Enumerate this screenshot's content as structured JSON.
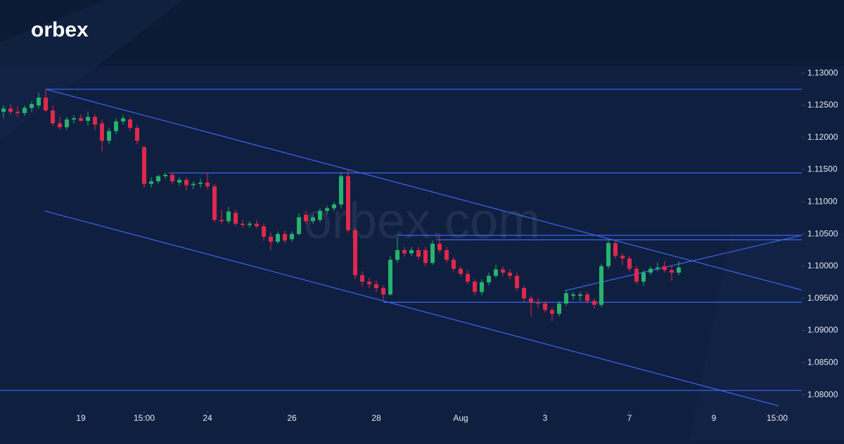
{
  "logo": "orbex",
  "watermark": "orbex.com",
  "chart_data": {
    "type": "candlestick",
    "colors": {
      "up": "#26b36b",
      "down": "#e0294a",
      "lines": "#3c66f0"
    },
    "xlim": [
      -0.5,
      113.5
    ],
    "xticks": [
      {
        "value": 11,
        "label": "19"
      },
      {
        "value": 20,
        "label": "15:00"
      },
      {
        "value": 29,
        "label": "24"
      },
      {
        "value": 41,
        "label": "26"
      },
      {
        "value": 53,
        "label": "28"
      },
      {
        "value": 65,
        "label": "Aug"
      },
      {
        "value": 77,
        "label": "3"
      },
      {
        "value": 89,
        "label": "7"
      },
      {
        "value": 101,
        "label": "9"
      },
      {
        "value": 110,
        "label": "15:00"
      }
    ],
    "ylim": [
      1.0775,
      1.131
    ],
    "yticks": [
      {
        "value": 1.08,
        "label": "1.08000"
      },
      {
        "value": 1.085,
        "label": "1.08500"
      },
      {
        "value": 1.09,
        "label": "1.09000"
      },
      {
        "value": 1.095,
        "label": "1.09500"
      },
      {
        "value": 1.1,
        "label": "1.10000"
      },
      {
        "value": 1.105,
        "label": "1.10500"
      },
      {
        "value": 1.11,
        "label": "1.11000"
      },
      {
        "value": 1.115,
        "label": "1.11500"
      },
      {
        "value": 1.12,
        "label": "1.12000"
      },
      {
        "value": 1.125,
        "label": "1.12500"
      },
      {
        "value": 1.13,
        "label": "1.13000"
      }
    ],
    "open": [
      1.124,
      1.1245,
      1.124,
      1.1238,
      1.1246,
      1.125,
      1.1262,
      1.1242,
      1.1222,
      1.1216,
      1.1228,
      1.123,
      1.1226,
      1.1232,
      1.1222,
      1.1195,
      1.121,
      1.1225,
      1.1228,
      1.1215,
      1.1185,
      1.1128,
      1.1132,
      1.114,
      1.1142,
      1.113,
      1.1134,
      1.1126,
      1.1128,
      1.113,
      1.1124,
      1.1072,
      1.107,
      1.1083,
      1.1066,
      1.1064,
      1.1066,
      1.1062,
      1.1046,
      1.1038,
      1.105,
      1.1042,
      1.105,
      1.108,
      1.107,
      1.1072,
      1.1086,
      1.109,
      1.1096,
      1.114,
      1.1056,
      1.0986,
      1.0976,
      1.0972,
      1.0966,
      1.0956,
      1.101,
      1.1025,
      1.102,
      1.1025,
      1.1025,
      1.1005,
      1.1035,
      1.1025,
      1.101,
      1.0996,
      1.0988,
      1.0976,
      1.096,
      1.0975,
      1.0985,
      1.0995,
      1.099,
      1.0985,
      1.0966,
      1.095,
      1.0944,
      1.0942,
      1.0932,
      1.0926,
      1.0942,
      1.0954,
      1.0954,
      1.0956,
      1.0946,
      1.094,
      1.1,
      1.1036,
      1.1016,
      1.1012,
      1.0996,
      1.0976,
      1.099,
      1.0996,
      1.1,
      1.0994,
      1.099
    ],
    "high": [
      1.125,
      1.1252,
      1.1248,
      1.125,
      1.1256,
      1.127,
      1.1275,
      1.125,
      1.1232,
      1.1232,
      1.1235,
      1.1236,
      1.124,
      1.1236,
      1.1228,
      1.1215,
      1.123,
      1.1235,
      1.1232,
      1.122,
      1.1188,
      1.1138,
      1.1142,
      1.1146,
      1.1146,
      1.1138,
      1.1138,
      1.1132,
      1.1136,
      1.1146,
      1.1128,
      1.1088,
      1.1092,
      1.1088,
      1.1072,
      1.107,
      1.1072,
      1.1066,
      1.1052,
      1.1054,
      1.1055,
      1.1054,
      1.1082,
      1.1086,
      1.108,
      1.109,
      1.1094,
      1.11,
      1.1146,
      1.115,
      1.106,
      1.0992,
      1.0982,
      1.0978,
      1.097,
      1.1015,
      1.1045,
      1.103,
      1.103,
      1.103,
      1.103,
      1.104,
      1.1046,
      1.103,
      1.1014,
      1.1,
      1.0994,
      1.098,
      1.098,
      1.099,
      1.1002,
      1.1,
      1.0995,
      1.099,
      1.097,
      1.0954,
      1.095,
      1.0946,
      1.0936,
      1.0946,
      1.0962,
      1.096,
      1.096,
      1.096,
      1.095,
      1.1004,
      1.104,
      1.104,
      1.102,
      1.1016,
      1.1,
      1.0994,
      1.1,
      1.1006,
      1.1008,
      1.1,
      1.1008
    ],
    "low": [
      1.123,
      1.1235,
      1.1232,
      1.1234,
      1.124,
      1.1245,
      1.124,
      1.1218,
      1.1212,
      1.1212,
      1.1222,
      1.1224,
      1.1218,
      1.1212,
      1.1178,
      1.119,
      1.1205,
      1.122,
      1.121,
      1.119,
      1.1122,
      1.1122,
      1.1128,
      1.1136,
      1.1128,
      1.1125,
      1.1118,
      1.112,
      1.1122,
      1.112,
      1.1068,
      1.1066,
      1.1066,
      1.1062,
      1.106,
      1.106,
      1.1058,
      1.104,
      1.1025,
      1.1035,
      1.1036,
      1.1038,
      1.1048,
      1.1066,
      1.1066,
      1.1068,
      1.108,
      1.1086,
      1.109,
      1.1052,
      1.098,
      1.0968,
      1.0966,
      1.096,
      1.0948,
      1.0954,
      1.1005,
      1.1015,
      1.1016,
      1.101,
      1.1,
      1.1002,
      1.102,
      1.1005,
      1.0992,
      1.0984,
      1.0972,
      1.0955,
      1.0955,
      1.097,
      1.0982,
      1.0985,
      1.098,
      1.0962,
      1.0945,
      1.0922,
      1.0935,
      1.0928,
      1.0915,
      1.0922,
      1.0938,
      1.0948,
      1.0946,
      1.0942,
      1.0934,
      1.0936,
      1.0996,
      1.1012,
      1.1002,
      1.0992,
      1.0972,
      1.097,
      1.0986,
      1.0992,
      1.099,
      1.0978,
      1.0986
    ],
    "close": [
      1.1245,
      1.124,
      1.1238,
      1.1246,
      1.1252,
      1.1262,
      1.1242,
      1.1222,
      1.1216,
      1.1228,
      1.123,
      1.1226,
      1.1232,
      1.122,
      1.1195,
      1.121,
      1.1225,
      1.123,
      1.1215,
      1.1195,
      1.1128,
      1.1132,
      1.114,
      1.1142,
      1.1132,
      1.1134,
      1.1126,
      1.1128,
      1.113,
      1.1124,
      1.1072,
      1.107,
      1.1085,
      1.1066,
      1.1064,
      1.1066,
      1.1062,
      1.1046,
      1.1038,
      1.105,
      1.104,
      1.105,
      1.1076,
      1.107,
      1.1076,
      1.1086,
      1.109,
      1.1096,
      1.114,
      1.1056,
      1.0986,
      1.0976,
      1.0972,
      1.0966,
      1.0956,
      1.101,
      1.1025,
      1.102,
      1.1025,
      1.1015,
      1.1005,
      1.1035,
      1.1025,
      1.101,
      1.0996,
      1.0988,
      1.0976,
      1.096,
      1.0975,
      1.0985,
      1.0995,
      1.099,
      1.0985,
      1.0966,
      1.095,
      1.0944,
      1.0942,
      1.0932,
      1.0926,
      1.0942,
      1.0958,
      1.0956,
      1.0956,
      1.0946,
      1.094,
      1.1,
      1.1036,
      1.1016,
      1.1012,
      1.0996,
      1.0976,
      1.099,
      1.0996,
      1.0998,
      1.0994,
      1.099,
      1.0998
    ],
    "trend_lines": [
      {
        "x": [
          6,
          113.5
        ],
        "y": [
          1.1275,
          1.1275
        ]
      },
      {
        "x": [
          6,
          113.5
        ],
        "y": [
          1.1275,
          1.0963
        ]
      },
      {
        "x": [
          5.8,
          110.2
        ],
        "y": [
          1.1086,
          1.0783
        ]
      },
      {
        "x": [
          23.5,
          113.5
        ],
        "y": [
          1.1145,
          1.1145
        ]
      },
      {
        "x": [
          56,
          113.5
        ],
        "y": [
          1.1048,
          1.1048
        ]
      },
      {
        "x": [
          61.5,
          113.5
        ],
        "y": [
          1.1041,
          1.1041
        ]
      },
      {
        "x": [
          54,
          113.5
        ],
        "y": [
          1.0944,
          1.0944
        ]
      },
      {
        "x": [
          79.8,
          113.5
        ],
        "y": [
          1.0962,
          1.1048
        ]
      },
      {
        "x": [
          -0.5,
          113.5
        ],
        "y": [
          1.0807,
          1.0807
        ]
      }
    ]
  }
}
